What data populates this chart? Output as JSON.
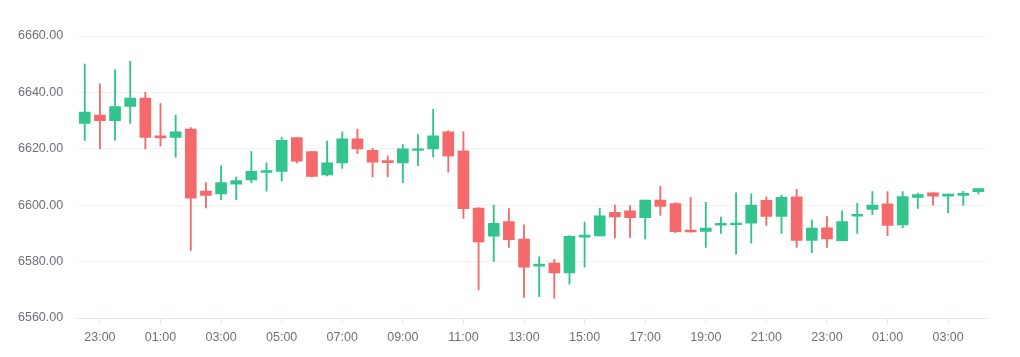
{
  "chart_data": {
    "type": "candlestick",
    "categories": [
      null,
      "23:00",
      null,
      null,
      null,
      "01:00",
      null,
      null,
      null,
      "03:00",
      null,
      null,
      null,
      "05:00",
      null,
      null,
      null,
      "07:00",
      null,
      null,
      null,
      "09:00",
      null,
      null,
      null,
      "11:00",
      null,
      null,
      null,
      "13:00",
      null,
      null,
      null,
      "15:00",
      null,
      null,
      null,
      "17:00",
      null,
      null,
      null,
      "19:00",
      null,
      null,
      null,
      "21:00",
      null,
      null,
      null,
      "23:00",
      null,
      null,
      null,
      "01:00",
      null,
      null,
      null,
      "03:00",
      null,
      null
    ],
    "ohlc": [
      [
        6629,
        6650,
        6623,
        6633
      ],
      [
        6632,
        6643,
        6620,
        6630
      ],
      [
        6630,
        6648,
        6623,
        6635
      ],
      [
        6635,
        6651,
        6629,
        6638
      ],
      [
        6638,
        6640,
        6620,
        6624
      ],
      [
        6624.6,
        6636,
        6621,
        6623.9
      ],
      [
        6624,
        6632,
        6617,
        6626
      ],
      [
        6627,
        6627.5,
        6584,
        6602.5
      ],
      [
        6605,
        6608,
        6599,
        6603.5
      ],
      [
        6604,
        6614,
        6602,
        6608
      ],
      [
        6607.5,
        6610,
        6602,
        6608.7
      ],
      [
        6609,
        6619,
        6608,
        6612
      ],
      [
        6611.6,
        6615,
        6605,
        6612.3
      ],
      [
        6612,
        6624,
        6608.5,
        6623
      ],
      [
        6624,
        6624,
        6615,
        6615.6
      ],
      [
        6619,
        6619,
        6610,
        6610.2
      ],
      [
        6610.7,
        6622.7,
        6610.4,
        6615
      ],
      [
        6615,
        6626,
        6613,
        6623.5
      ],
      [
        6623.5,
        6627,
        6618.3,
        6620
      ],
      [
        6619.5,
        6620.2,
        6610,
        6615.3
      ],
      [
        6615.8,
        6617.5,
        6610,
        6615.1
      ],
      [
        6615,
        6621.5,
        6608,
        6620
      ],
      [
        6619.4,
        6625,
        6614,
        6620
      ],
      [
        6620,
        6634,
        6617,
        6624.6
      ],
      [
        6626,
        6626.5,
        6611.7,
        6617.5
      ],
      [
        6619.3,
        6626,
        6595.3,
        6598.8
      ],
      [
        6599,
        6599.2,
        6570,
        6587
      ],
      [
        6589,
        6600,
        6580,
        6593.6
      ],
      [
        6594.2,
        6598.8,
        6585,
        6587.8
      ],
      [
        6588,
        6593,
        6567.3,
        6578
      ],
      [
        6578.4,
        6581.7,
        6567.6,
        6579.1
      ],
      [
        6579.5,
        6580.8,
        6567,
        6576
      ],
      [
        6576,
        6589.2,
        6572,
        6589
      ],
      [
        6588.7,
        6594,
        6578,
        6589.4
      ],
      [
        6589.1,
        6599,
        6589,
        6596.2
      ],
      [
        6597.5,
        6600,
        6588.3,
        6595.8
      ],
      [
        6598,
        6599.8,
        6588.6,
        6595.6
      ],
      [
        6595.6,
        6601.8,
        6588,
        6601.8
      ],
      [
        6601.8,
        6606.7,
        6596.4,
        6599.6
      ],
      [
        6600.6,
        6600.9,
        6590.3,
        6590.6
      ],
      [
        6591.2,
        6602.8,
        6590.4,
        6590.5
      ],
      [
        6590.7,
        6601,
        6585,
        6591.9
      ],
      [
        6592.9,
        6595.8,
        6590,
        6593.6
      ],
      [
        6593.1,
        6604.4,
        6582.6,
        6593.7
      ],
      [
        6593.6,
        6604,
        6586.5,
        6600
      ],
      [
        6601.7,
        6603,
        6592.8,
        6596
      ],
      [
        6596,
        6603.6,
        6590,
        6602.8
      ],
      [
        6603,
        6605.6,
        6585,
        6587.5
      ],
      [
        6587.5,
        6594.8,
        6583.2,
        6591.9
      ],
      [
        6592,
        6596,
        6585,
        6588
      ],
      [
        6587.4,
        6598,
        6587.4,
        6594.2
      ],
      [
        6596.1,
        6600.7,
        6590,
        6596.8
      ],
      [
        6598.5,
        6604.8,
        6596.6,
        6600
      ],
      [
        6600.5,
        6604.8,
        6589.2,
        6592.8
      ],
      [
        6593,
        6604.8,
        6592,
        6603.1
      ],
      [
        6602.8,
        6604.3,
        6598.9,
        6603.8
      ],
      [
        6604.4,
        6604.5,
        6600,
        6603.2
      ],
      [
        6603.2,
        6604,
        6597.3,
        6603.9
      ],
      [
        6603.5,
        6604.9,
        6599.9,
        6604.2
      ],
      [
        6604.8,
        6605.9,
        6604,
        6605.9
      ]
    ],
    "colors": [
      "#32c48d",
      "#f46a6a",
      "#32c48d",
      "#32c48d",
      "#f46a6a",
      "#f46a6a",
      "#32c48d",
      "#f46a6a",
      "#f46a6a",
      "#32c48d",
      "#32c48d",
      "#32c48d",
      "#32c48d",
      "#32c48d",
      "#f46a6a",
      "#f46a6a",
      "#32c48d",
      "#32c48d",
      "#f46a6a",
      "#f46a6a",
      "#f46a6a",
      "#32c48d",
      "#32c48d",
      "#32c48d",
      "#f46a6a",
      "#f46a6a",
      "#f46a6a",
      "#32c48d",
      "#f46a6a",
      "#f46a6a",
      "#32c48d",
      "#f46a6a",
      "#32c48d",
      "#32c48d",
      "#32c48d",
      "#f46a6a",
      "#f46a6a",
      "#32c48d",
      "#f46a6a",
      "#f46a6a",
      "#f46a6a",
      "#32c48d",
      "#32c48d",
      "#32c48d",
      "#32c48d",
      "#f46a6a",
      "#32c48d",
      "#f46a6a",
      "#32c48d",
      "#f46a6a",
      "#32c48d",
      "#32c48d",
      "#32c48d",
      "#f46a6a",
      "#32c48d",
      "#32c48d",
      "#f46a6a",
      "#32c48d",
      "#32c48d",
      "#32c48d"
    ],
    "ylim": [
      6560,
      6660
    ],
    "yticks": [
      {
        "value": 6560,
        "label": "6560.00"
      },
      {
        "value": 6580,
        "label": "6580.00"
      },
      {
        "value": 6600,
        "label": "6600.00"
      },
      {
        "value": 6620,
        "label": "6620.00"
      },
      {
        "value": 6640,
        "label": "6640.00"
      },
      {
        "value": 6660,
        "label": "6660.00"
      }
    ],
    "grid": "y"
  }
}
